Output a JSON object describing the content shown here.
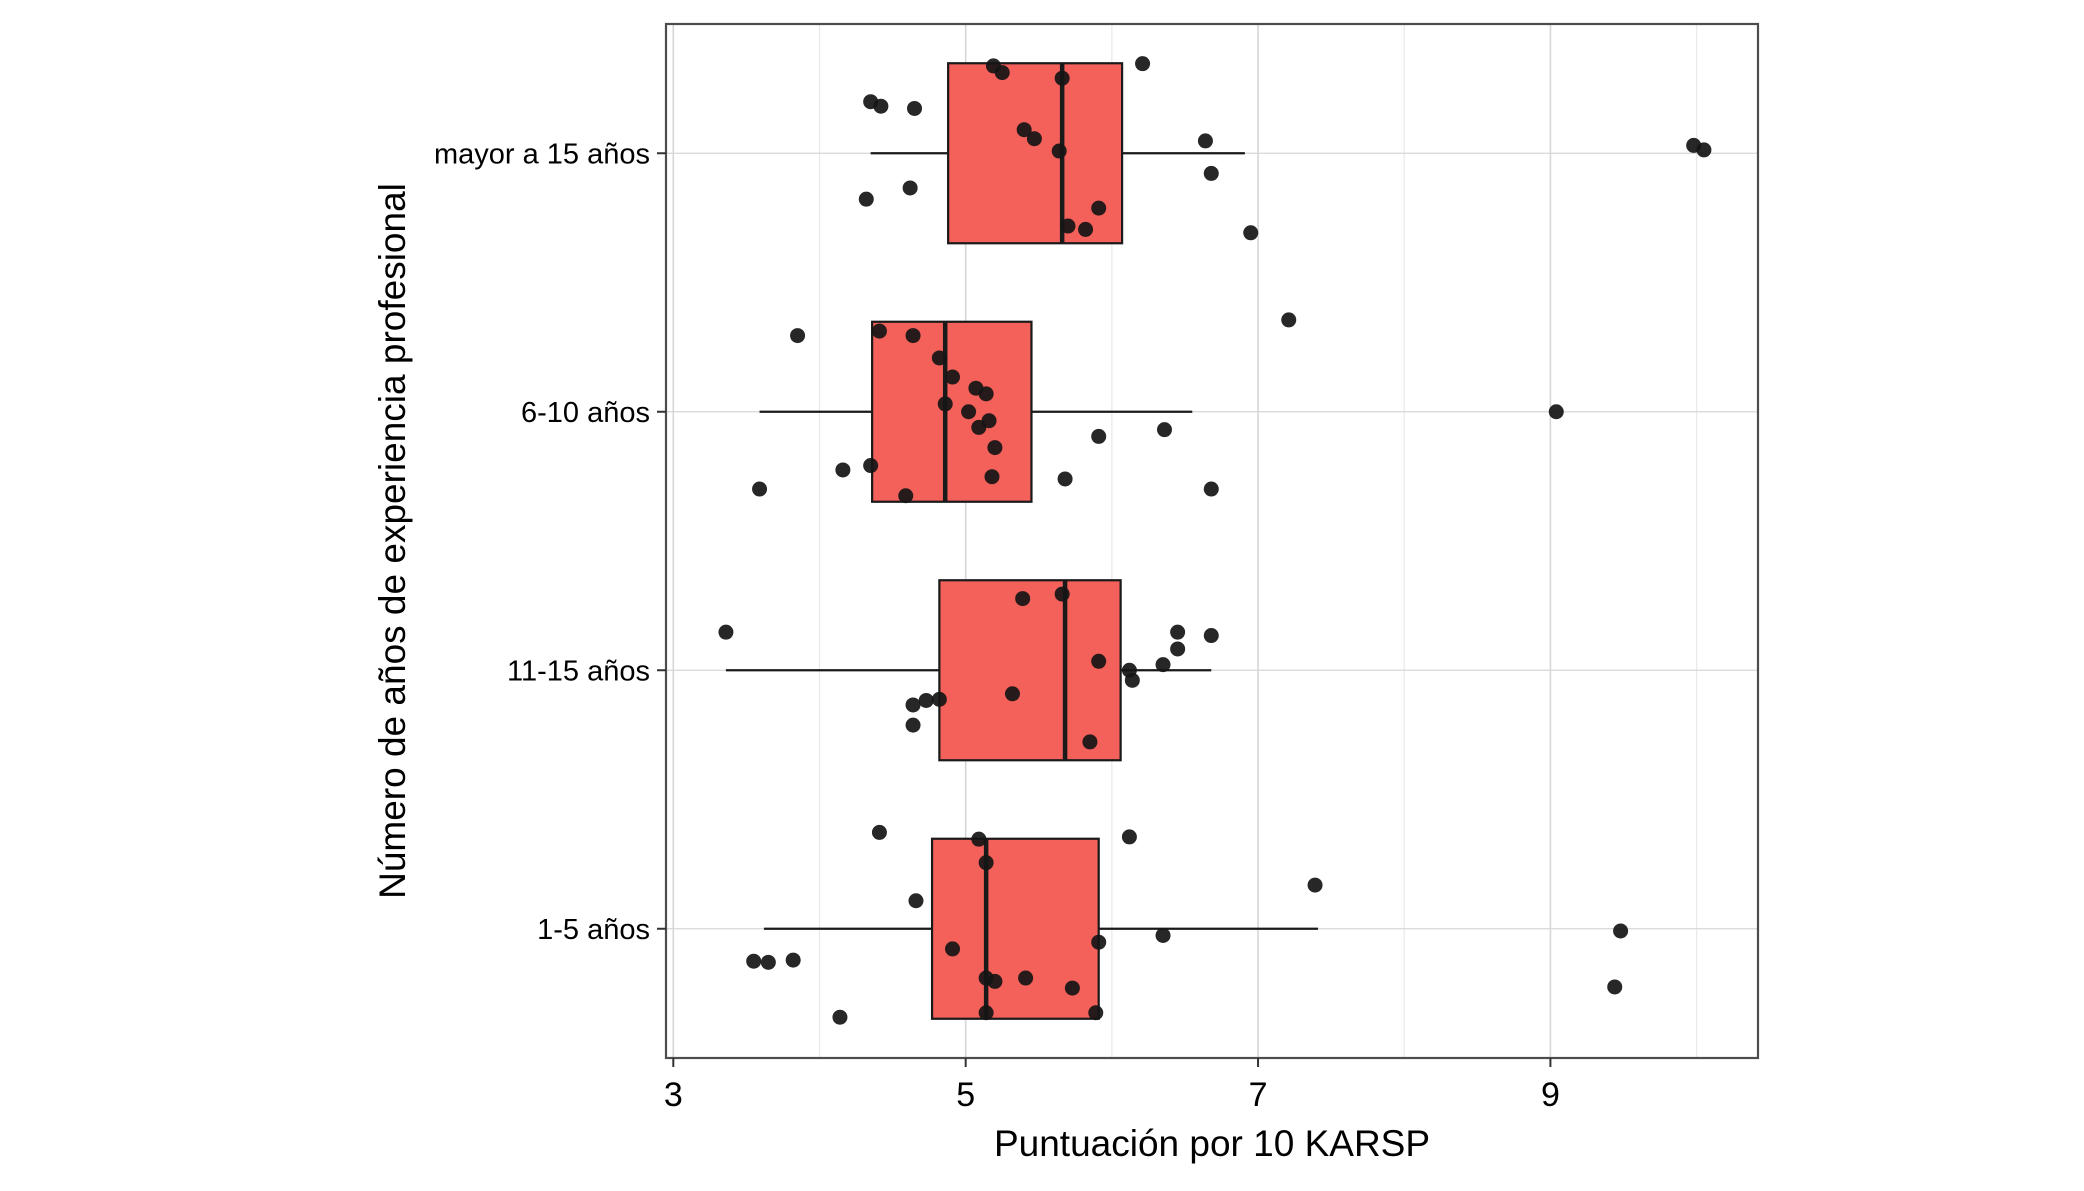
{
  "figure": {
    "background": "#ffffff"
  },
  "chart_data": {
    "type": "boxplot",
    "orientation": "horizontal",
    "title": "",
    "xlabel": "Puntuación por 10 KARSP",
    "ylabel": "Número de años de experiencia profesional",
    "x_domain": [
      2.95,
      10.42
    ],
    "x_ticks": [
      3,
      5,
      7,
      9
    ],
    "x_minor_ticks": [
      4,
      6,
      8,
      10
    ],
    "grid": true,
    "legend": false,
    "colors": {
      "box_fill": "#F4605A",
      "box_stroke": "#1a1a1a",
      "median": "#1a1a1a",
      "point": "#151515",
      "grid_major": "#d6d6d6",
      "grid_minor": "#e9e9e9",
      "panel_border": "#4d4d4d",
      "text": "#000000"
    },
    "categories_top_to_bottom": [
      "mayor a 15 años",
      "6-10 años",
      "11-15 años",
      "1-5 años"
    ],
    "groups": [
      {
        "label": "mayor a 15 años",
        "stats": {
          "whisker_min": 4.35,
          "q1": 4.88,
          "median": 5.66,
          "q3": 6.07,
          "whisker_max": 6.91
        },
        "points": [
          [
            5.19,
            -0.78
          ],
          [
            5.25,
            -0.72
          ],
          [
            6.21,
            -0.8
          ],
          [
            4.35,
            -0.46
          ],
          [
            4.42,
            -0.42
          ],
          [
            4.65,
            -0.4
          ],
          [
            5.66,
            -0.67
          ],
          [
            5.4,
            -0.21
          ],
          [
            5.47,
            -0.13
          ],
          [
            5.64,
            -0.02
          ],
          [
            6.64,
            -0.11
          ],
          [
            9.98,
            -0.07
          ],
          [
            10.05,
            -0.03
          ],
          [
            6.68,
            0.18
          ],
          [
            4.62,
            0.31
          ],
          [
            4.32,
            0.41
          ],
          [
            5.91,
            0.49
          ],
          [
            5.7,
            0.65
          ],
          [
            5.82,
            0.68
          ],
          [
            6.95,
            0.71
          ]
        ]
      },
      {
        "label": "6-10 años",
        "stats": {
          "whisker_min": 3.59,
          "q1": 4.36,
          "median": 4.86,
          "q3": 5.45,
          "whisker_max": 6.55
        },
        "points": [
          [
            7.21,
            -0.82
          ],
          [
            3.85,
            -0.68
          ],
          [
            4.41,
            -0.72
          ],
          [
            4.64,
            -0.68
          ],
          [
            4.82,
            -0.48
          ],
          [
            4.91,
            -0.31
          ],
          [
            5.07,
            -0.21
          ],
          [
            5.14,
            -0.16
          ],
          [
            4.86,
            -0.07
          ],
          [
            5.02,
            0.0
          ],
          [
            9.04,
            0.0
          ],
          [
            6.36,
            0.16
          ],
          [
            5.16,
            0.08
          ],
          [
            5.09,
            0.14
          ],
          [
            5.91,
            0.22
          ],
          [
            4.16,
            0.52
          ],
          [
            4.35,
            0.48
          ],
          [
            5.18,
            0.58
          ],
          [
            5.68,
            0.6
          ],
          [
            4.59,
            0.75
          ],
          [
            3.59,
            0.69
          ],
          [
            6.68,
            0.69
          ],
          [
            5.2,
            0.32
          ]
        ]
      },
      {
        "label": "11-15 años",
        "stats": {
          "whisker_min": 3.36,
          "q1": 4.82,
          "median": 5.68,
          "q3": 6.06,
          "whisker_max": 6.68
        },
        "points": [
          [
            3.36,
            -0.34
          ],
          [
            5.39,
            -0.64
          ],
          [
            5.66,
            -0.68
          ],
          [
            6.45,
            -0.34
          ],
          [
            6.68,
            -0.31
          ],
          [
            5.91,
            -0.08
          ],
          [
            6.12,
            0.0
          ],
          [
            6.35,
            -0.05
          ],
          [
            6.45,
            -0.19
          ],
          [
            5.32,
            0.21
          ],
          [
            4.64,
            0.31
          ],
          [
            4.73,
            0.27
          ],
          [
            4.82,
            0.26
          ],
          [
            4.64,
            0.49
          ],
          [
            5.85,
            0.64
          ],
          [
            6.14,
            0.09
          ]
        ]
      },
      {
        "label": "1-5 años",
        "stats": {
          "whisker_min": 3.62,
          "q1": 4.77,
          "median": 5.14,
          "q3": 5.91,
          "whisker_max": 7.41
        },
        "points": [
          [
            4.41,
            -0.86
          ],
          [
            6.12,
            -0.82
          ],
          [
            5.09,
            -0.8
          ],
          [
            5.14,
            -0.59
          ],
          [
            4.66,
            -0.25
          ],
          [
            7.39,
            -0.39
          ],
          [
            9.48,
            0.02
          ],
          [
            6.35,
            0.06
          ],
          [
            5.91,
            0.12
          ],
          [
            4.91,
            0.18
          ],
          [
            3.55,
            0.29
          ],
          [
            3.65,
            0.3
          ],
          [
            3.82,
            0.28
          ],
          [
            5.14,
            0.44
          ],
          [
            5.2,
            0.47
          ],
          [
            5.41,
            0.44
          ],
          [
            5.73,
            0.53
          ],
          [
            9.44,
            0.52
          ],
          [
            4.14,
            0.79
          ],
          [
            5.14,
            0.75
          ],
          [
            5.89,
            0.75
          ]
        ]
      }
    ]
  }
}
